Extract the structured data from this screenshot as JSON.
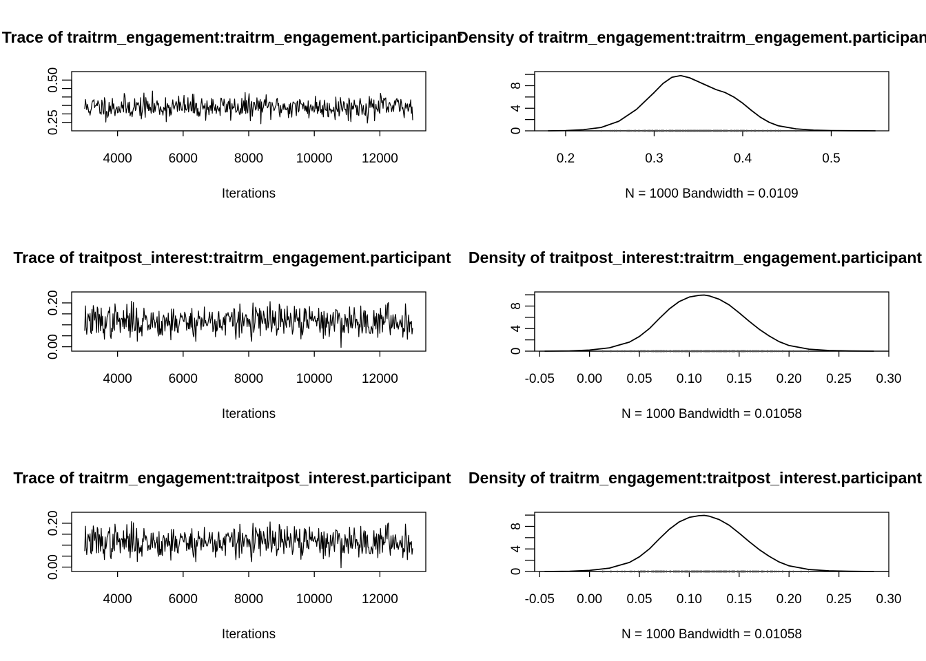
{
  "chart_data": [
    {
      "type": "line",
      "title": "Trace of traitrm_engagement:traitrm_engagement.participant",
      "xlabel": "Iterations",
      "ylabel": "",
      "xlim": [
        2600,
        13400
      ],
      "ylim": [
        0.2,
        0.55
      ],
      "xticks": [
        4000,
        6000,
        8000,
        10000,
        12000
      ],
      "yticks": [
        0.25,
        0.3,
        0.35,
        0.4,
        0.45,
        0.5
      ],
      "ytick_labels": [
        "0.25",
        "",
        "",
        "",
        "",
        "0.50"
      ],
      "trace_x_range": [
        3000,
        13000
      ],
      "trace_center": 0.34,
      "trace_spread": 0.035,
      "trace_min": 0.21,
      "trace_max": 0.53,
      "seed": 11
    },
    {
      "type": "line",
      "title": "Density of traitrm_engagement:traitrm_engagement.participant",
      "xlabel": "N = 1000   Bandwidth = 0.0109",
      "ylabel": "",
      "xlim": [
        0.165,
        0.565
      ],
      "ylim": [
        0,
        10.5
      ],
      "xticks": [
        0.2,
        0.3,
        0.4,
        0.5
      ],
      "xtick_labels": [
        "0.2",
        "0.3",
        "0.4",
        "0.5"
      ],
      "yticks": [
        0,
        2,
        4,
        6,
        8,
        10
      ],
      "ytick_labels": [
        "0",
        "",
        "4",
        "",
        "8",
        ""
      ],
      "x": [
        0.18,
        0.2,
        0.22,
        0.24,
        0.26,
        0.28,
        0.3,
        0.31,
        0.32,
        0.33,
        0.34,
        0.35,
        0.36,
        0.37,
        0.38,
        0.39,
        0.4,
        0.41,
        0.42,
        0.43,
        0.44,
        0.46,
        0.48,
        0.5,
        0.52,
        0.55
      ],
      "y": [
        0.0,
        0.05,
        0.2,
        0.6,
        1.7,
        3.8,
        6.8,
        8.4,
        9.5,
        9.8,
        9.4,
        8.7,
        8.0,
        7.3,
        6.8,
        6.0,
        4.9,
        3.6,
        2.4,
        1.5,
        0.9,
        0.35,
        0.12,
        0.05,
        0.02,
        0.0
      ],
      "rug_range": [
        0.24,
        0.46
      ],
      "rug_center": 0.34,
      "rug_spread": 0.04,
      "seed": 23
    },
    {
      "type": "line",
      "title": "Trace of traitpost_interest:traitrm_engagement.participant",
      "xlabel": "Iterations",
      "ylabel": "",
      "xlim": [
        2600,
        13400
      ],
      "ylim": [
        -0.02,
        0.25
      ],
      "xticks": [
        4000,
        6000,
        8000,
        10000,
        12000
      ],
      "yticks": [
        0.0,
        0.05,
        0.1,
        0.15,
        0.2
      ],
      "ytick_labels": [
        "0.00",
        "",
        "",
        "",
        "0.20"
      ],
      "trace_x_range": [
        3000,
        13000
      ],
      "trace_center": 0.115,
      "trace_spread": 0.038,
      "trace_min": -0.01,
      "trace_max": 0.235,
      "seed": 37
    },
    {
      "type": "line",
      "title": "Density of traitpost_interest:traitrm_engagement.participant",
      "xlabel": "N = 1000   Bandwidth = 0.01058",
      "ylabel": "",
      "xlim": [
        -0.055,
        0.3
      ],
      "ylim": [
        0,
        10.5
      ],
      "xticks": [
        -0.05,
        0.0,
        0.05,
        0.1,
        0.15,
        0.2,
        0.25,
        0.3
      ],
      "xtick_labels": [
        "-0.05",
        "0.00",
        "0.05",
        "0.10",
        "0.15",
        "0.20",
        "0.25",
        "0.30"
      ],
      "yticks": [
        0,
        2,
        4,
        6,
        8,
        10
      ],
      "ytick_labels": [
        "0",
        "",
        "4",
        "",
        "8",
        ""
      ],
      "x": [
        -0.045,
        -0.02,
        0.0,
        0.02,
        0.04,
        0.05,
        0.06,
        0.07,
        0.08,
        0.09,
        0.1,
        0.11,
        0.115,
        0.12,
        0.13,
        0.14,
        0.15,
        0.16,
        0.17,
        0.18,
        0.19,
        0.2,
        0.22,
        0.24,
        0.26,
        0.285
      ],
      "y": [
        0.0,
        0.05,
        0.2,
        0.6,
        1.6,
        2.6,
        4.0,
        5.8,
        7.5,
        8.8,
        9.6,
        9.9,
        9.95,
        9.8,
        9.2,
        8.2,
        6.8,
        5.3,
        3.9,
        2.7,
        1.7,
        1.0,
        0.35,
        0.12,
        0.04,
        0.0
      ],
      "rug_range": [
        0.0,
        0.24
      ],
      "rug_center": 0.115,
      "rug_spread": 0.04,
      "seed": 41
    },
    {
      "type": "line",
      "title": "Trace of traitrm_engagement:traitpost_interest.participant",
      "xlabel": "Iterations",
      "ylabel": "",
      "xlim": [
        2600,
        13400
      ],
      "ylim": [
        -0.02,
        0.25
      ],
      "xticks": [
        4000,
        6000,
        8000,
        10000,
        12000
      ],
      "yticks": [
        0.0,
        0.05,
        0.1,
        0.15,
        0.2
      ],
      "ytick_labels": [
        "0.00",
        "",
        "",
        "",
        "0.20"
      ],
      "trace_x_range": [
        3000,
        13000
      ],
      "trace_center": 0.115,
      "trace_spread": 0.038,
      "trace_min": -0.01,
      "trace_max": 0.235,
      "seed": 37
    },
    {
      "type": "line",
      "title": "Density of traitrm_engagement:traitpost_interest.participant",
      "xlabel": "N = 1000   Bandwidth = 0.01058",
      "ylabel": "",
      "xlim": [
        -0.055,
        0.3
      ],
      "ylim": [
        0,
        10.5
      ],
      "xticks": [
        -0.05,
        0.0,
        0.05,
        0.1,
        0.15,
        0.2,
        0.25,
        0.3
      ],
      "xtick_labels": [
        "-0.05",
        "0.00",
        "0.05",
        "0.10",
        "0.15",
        "0.20",
        "0.25",
        "0.30"
      ],
      "yticks": [
        0,
        2,
        4,
        6,
        8,
        10
      ],
      "ytick_labels": [
        "0",
        "",
        "4",
        "",
        "8",
        ""
      ],
      "x": [
        -0.045,
        -0.02,
        0.0,
        0.02,
        0.04,
        0.05,
        0.06,
        0.07,
        0.08,
        0.09,
        0.1,
        0.11,
        0.115,
        0.12,
        0.13,
        0.14,
        0.15,
        0.16,
        0.17,
        0.18,
        0.19,
        0.2,
        0.22,
        0.24,
        0.26,
        0.285
      ],
      "y": [
        0.0,
        0.05,
        0.2,
        0.6,
        1.6,
        2.6,
        4.0,
        5.8,
        7.5,
        8.8,
        9.6,
        9.9,
        9.95,
        9.8,
        9.2,
        8.2,
        6.8,
        5.3,
        3.9,
        2.7,
        1.7,
        1.0,
        0.35,
        0.12,
        0.04,
        0.0
      ],
      "rug_range": [
        0.0,
        0.24
      ],
      "rug_center": 0.115,
      "rug_spread": 0.04,
      "seed": 41
    }
  ],
  "colors": {
    "line": "#000000",
    "rug": "#555555",
    "background": "#ffffff"
  }
}
